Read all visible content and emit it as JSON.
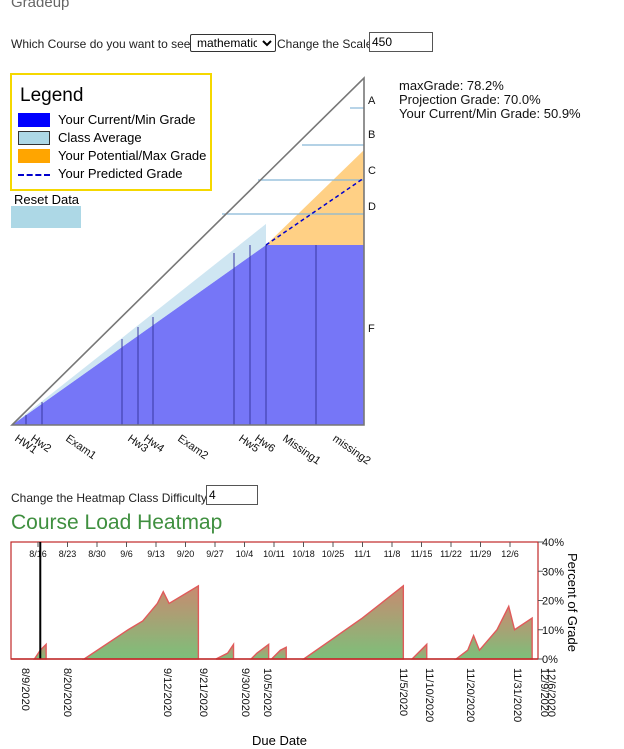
{
  "app": {
    "title": "Gradeup"
  },
  "controls": {
    "course_prompt": "Which Course do you want to see?",
    "course_selected": "mathematics",
    "scale_label": "Change the Scale:",
    "scale_value": "450"
  },
  "legend": {
    "title": "Legend",
    "items": [
      {
        "label": "Your Current/Min Grade",
        "color": "#0000ff"
      },
      {
        "label": "Class Average",
        "color": "#add8e6"
      },
      {
        "label": "Your Potential/Max Grade",
        "color": "#ffa500"
      },
      {
        "label": "Your Predicted Grade",
        "color": "#0000cc"
      }
    ]
  },
  "reset": {
    "label": "Reset Data"
  },
  "info": {
    "max_grade": "maxGrade: 78.2%",
    "projection": "Projection Grade: 70.0%",
    "current": "Your Current/Min Grade: 50.9%"
  },
  "grade_letters": [
    "A",
    "B",
    "C",
    "D",
    "F"
  ],
  "assignments": [
    "HW1",
    "Hw2",
    "Exam1",
    "Hw3",
    "Hw4",
    "Exam2",
    "Hw5",
    "Hw6",
    "Missing1",
    "missing2"
  ],
  "heatmap_controls": {
    "label": "Change the Heatmap Class Difficulty:",
    "value": "4"
  },
  "chart_data": {
    "type": "area",
    "title": "Course Load Heatmap",
    "xlabel": "Due Date",
    "ylabel": "Percent of Grade",
    "top_ticks": [
      "8/16",
      "8/23",
      "8/30",
      "9/6",
      "9/13",
      "9/20",
      "9/27",
      "10/4",
      "10/11",
      "10/18",
      "10/25",
      "11/1",
      "11/8",
      "11/15",
      "11/22",
      "11/29",
      "12/6"
    ],
    "date_labels": [
      "8/9/2020",
      "8/20/2020",
      "9/12/2020",
      "9/21/2020",
      "9/30/2020",
      "10/5/2020",
      "11/5/2020",
      "11/10/2020",
      "11/20/2020",
      "11/31/2020",
      "12/9/2020",
      "12/6/2020"
    ],
    "y_ticks": [
      "0%",
      "10%",
      "20%",
      "30%",
      "40%"
    ],
    "ylim": [
      0,
      40
    ],
    "series": [
      {
        "points": [
          [
            8,
            0
          ],
          [
            10,
            3
          ],
          [
            12,
            5
          ],
          [
            12,
            0
          ]
        ]
      },
      {
        "points": [
          [
            25,
            0
          ],
          [
            40,
            10
          ],
          [
            45,
            13
          ],
          [
            50,
            19
          ],
          [
            52,
            23
          ],
          [
            54,
            19
          ],
          [
            64,
            25
          ],
          [
            64,
            0
          ]
        ]
      },
      {
        "points": [
          [
            70,
            0
          ],
          [
            74,
            2
          ],
          [
            76,
            5
          ],
          [
            76,
            0
          ]
        ]
      },
      {
        "points": [
          [
            82,
            0
          ],
          [
            84,
            2
          ],
          [
            88,
            5
          ],
          [
            88,
            0
          ]
        ]
      },
      {
        "points": [
          [
            89,
            0
          ],
          [
            92,
            3
          ],
          [
            94,
            4
          ],
          [
            94,
            0
          ]
        ]
      },
      {
        "points": [
          [
            100,
            0
          ],
          [
            110,
            7
          ],
          [
            120,
            14
          ],
          [
            134,
            25
          ],
          [
            134,
            0
          ]
        ]
      },
      {
        "points": [
          [
            137,
            0
          ],
          [
            142,
            5
          ],
          [
            142,
            0
          ]
        ]
      },
      {
        "points": [
          [
            152,
            0
          ],
          [
            156,
            3
          ],
          [
            158,
            8
          ],
          [
            160,
            3
          ],
          [
            166,
            10
          ],
          [
            170,
            18
          ],
          [
            172,
            10
          ],
          [
            178,
            14
          ],
          [
            178,
            0
          ]
        ]
      }
    ],
    "marker_x": 10
  }
}
